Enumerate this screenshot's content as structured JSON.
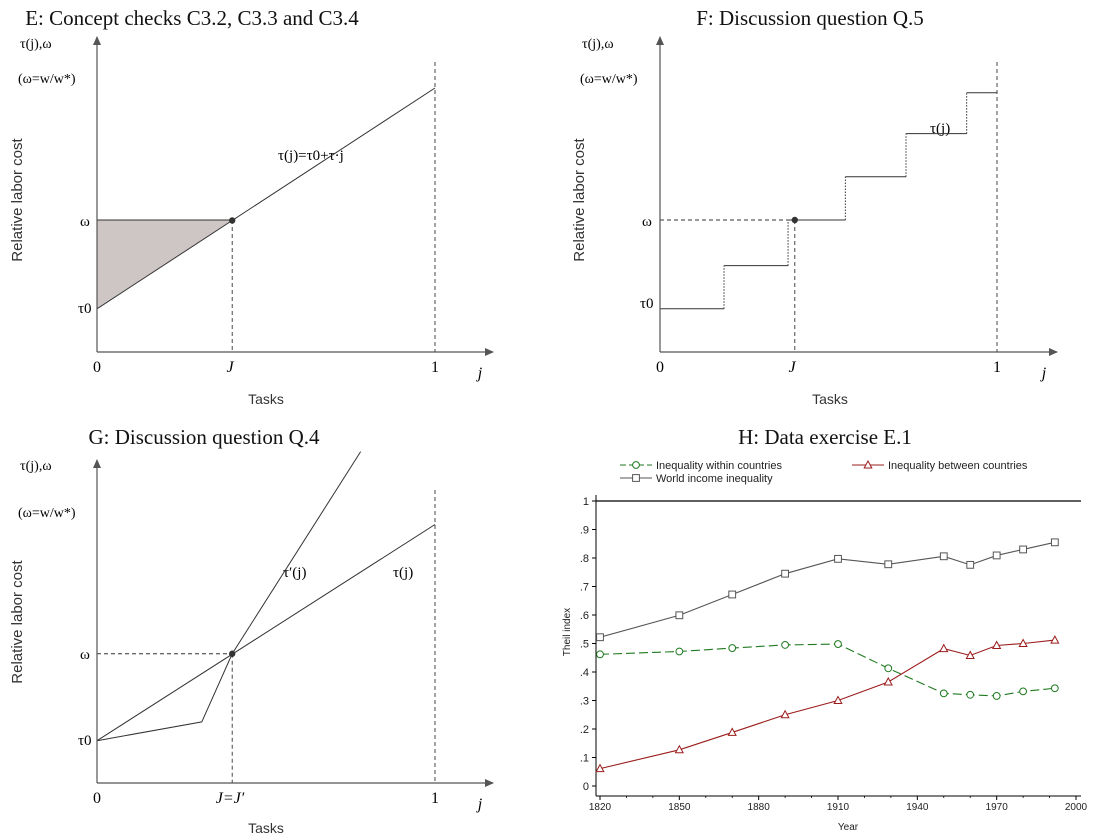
{
  "panels": {
    "E": {
      "title": "E: Concept checks C3.2, C3.3 and C3.4",
      "y_axis_symbol": "τ(j),ω",
      "y_axis_note": "(ω=w/w*)",
      "ylabel": "Relative labor cost",
      "xlabel": "Tasks",
      "x_origin": "0",
      "x_J": "J",
      "x_one": "1",
      "x_var": "j",
      "y_omega": "ω",
      "y_tau0": "τ0",
      "curve_label": "τ(j)=τ0+τ·j"
    },
    "F": {
      "title": "F: Discussion question Q.5",
      "y_axis_symbol": "τ(j),ω",
      "y_axis_note": "(ω=w/w*)",
      "ylabel": "Relative labor cost",
      "xlabel": "Tasks",
      "x_origin": "0",
      "x_J": "J",
      "x_one": "1",
      "x_var": "j",
      "y_omega": "ω",
      "y_tau0": "τ0",
      "curve_label": "τ(j)"
    },
    "G": {
      "title": "G: Discussion question Q.4",
      "y_axis_symbol": "τ(j),ω",
      "y_axis_note": "(ω=w/w*)",
      "ylabel": "Relative labor cost",
      "xlabel": "Tasks",
      "x_origin": "0",
      "x_J": "J=J′",
      "x_one": "1",
      "x_var": "j",
      "y_omega": "ω",
      "y_tau0": "τ0",
      "curve_label_1": "τ′(j)",
      "curve_label_2": "τ(j)"
    }
  },
  "chart_data": [
    {
      "type": "line",
      "panel": "E",
      "title": "E: Concept checks C3.2, C3.3 and C3.4",
      "xlabel": "Tasks",
      "ylabel": "Relative labor cost",
      "xlim": [
        0,
        1
      ],
      "series": [
        {
          "name": "τ(j)=τ0+τ·j",
          "x": [
            0,
            1
          ],
          "y": [
            0.18,
            1.1
          ]
        }
      ],
      "omega": 0.55,
      "J": 0.4,
      "shaded_region": "between ω and τ(j) for 0 ≤ j ≤ J",
      "colors": {
        "shade": "#cdc6c4"
      }
    },
    {
      "type": "line",
      "panel": "F",
      "title": "F: Discussion question Q.5",
      "xlabel": "Tasks",
      "ylabel": "Relative labor cost",
      "xlim": [
        0,
        1
      ],
      "series": [
        {
          "name": "τ(j)",
          "step_x": [
            0,
            0.19,
            0.38,
            0.55,
            0.73,
            0.91,
            1.0
          ],
          "step_y": [
            0.18,
            0.36,
            0.55,
            0.73,
            0.91,
            1.08
          ]
        }
      ],
      "omega": 0.55,
      "J": 0.4
    },
    {
      "type": "line",
      "panel": "G",
      "title": "G: Discussion question Q.4",
      "xlabel": "Tasks",
      "ylabel": "Relative labor cost",
      "xlim": [
        0,
        1
      ],
      "series": [
        {
          "name": "τ(j)",
          "x": [
            0,
            1
          ],
          "y": [
            0.18,
            1.1
          ]
        },
        {
          "name": "τ′(j)",
          "x": [
            0,
            0.31,
            0.4,
            0.78
          ],
          "y": [
            0.18,
            0.26,
            0.55,
            1.41
          ]
        }
      ],
      "omega": 0.55,
      "J": 0.4
    },
    {
      "type": "line",
      "panel": "H",
      "title": "H: Data exercise E.1",
      "xlabel": "Year",
      "ylabel": "Theil index",
      "xlim": [
        1820,
        2000
      ],
      "ylim": [
        0,
        1
      ],
      "x_ticks": [
        1820,
        1850,
        1880,
        1910,
        1940,
        1970,
        2000
      ],
      "y_ticks": [
        0,
        0.1,
        0.2,
        0.3,
        0.4,
        0.5,
        0.6,
        0.7,
        0.8,
        0.9,
        1
      ],
      "y_tick_labels": [
        "0",
        ".1",
        ".2",
        ".3",
        ".4",
        ".5",
        ".6",
        ".7",
        ".8",
        ".9",
        "1"
      ],
      "reference_line": 1,
      "legend": "top",
      "x": [
        1820,
        1850,
        1870,
        1890,
        1910,
        1929,
        1950,
        1960,
        1970,
        1980,
        1992
      ],
      "series": [
        {
          "name": "Inequality within countries",
          "marker": "circle",
          "dashed": true,
          "color": "#1f7a1f",
          "values": [
            0.462,
            0.472,
            0.484,
            0.495,
            0.498,
            0.413,
            0.325,
            0.32,
            0.316,
            0.332,
            0.343
          ]
        },
        {
          "name": "Inequality between countries",
          "marker": "triangle",
          "dashed": false,
          "color": "#9b1c1c",
          "values": [
            0.061,
            0.127,
            0.188,
            0.25,
            0.3,
            0.365,
            0.482,
            0.458,
            0.493,
            0.5,
            0.512
          ]
        },
        {
          "name": "World income inequality",
          "marker": "square",
          "dashed": false,
          "color": "#555555",
          "values": [
            0.522,
            0.599,
            0.672,
            0.745,
            0.797,
            0.778,
            0.806,
            0.776,
            0.809,
            0.83,
            0.855
          ]
        }
      ]
    }
  ]
}
